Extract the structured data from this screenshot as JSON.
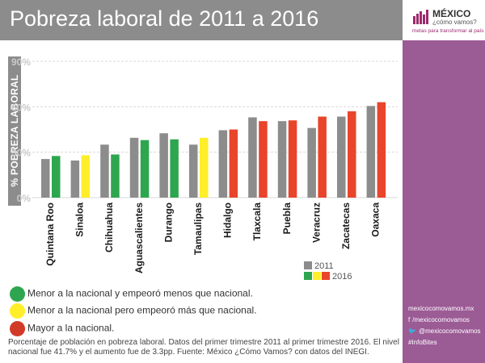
{
  "header": {
    "title": "Pobreza laboral de 2011 a 2016"
  },
  "brand": {
    "name": "MÉXICO",
    "sub": "¿cómo vamos?",
    "tagline": "metas para transformar al país",
    "logo_icon": "bar-logo-icon",
    "colors": {
      "logo": "#9b2a6e",
      "sidebar": "#9b5b95"
    }
  },
  "social": [
    {
      "icon": "",
      "text": "mexicocomovamos.mx"
    },
    {
      "icon": "facebook-icon",
      "glyph": "f",
      "text": "/mexicocomovamos"
    },
    {
      "icon": "twitter-icon",
      "glyph": "🐦",
      "text": "@mexicocomovamos"
    },
    {
      "icon": "",
      "text": "#InfoBites"
    }
  ],
  "colors": {
    "bar_2011": "#8c8c8c",
    "green": "#2ea64f",
    "yellow": "#ffee2a",
    "red": "#e8452c"
  },
  "chart_data": {
    "type": "bar",
    "title": "Pobreza laboral de 2011 a 2016",
    "ylabel": "% POBREZA LABORAL",
    "xlabel": "",
    "ylim": [
      0,
      90
    ],
    "y_ticks": [
      0,
      30,
      60,
      90
    ],
    "y_tick_labels": [
      "0%",
      "30%",
      "60%",
      "90%"
    ],
    "grid": true,
    "categories": [
      "Quintana Roo",
      "Sinaloa",
      "Chihuahua",
      "Aguascalientes",
      "Durango",
      "Tamaulipas",
      "Hidalgo",
      "Tlaxcala",
      "Puebla",
      "Veracruz",
      "Zacatecas",
      "Oaxaca"
    ],
    "series": [
      {
        "name": "2011",
        "values": [
          25.5,
          24.5,
          35,
          39.5,
          42.5,
          35,
          44.5,
          53,
          50.5,
          46,
          53.5,
          60.5
        ]
      },
      {
        "name": "2016",
        "values": [
          27.5,
          28,
          28.5,
          38,
          38.5,
          39.5,
          45,
          50.5,
          51,
          53.5,
          57,
          63
        ]
      }
    ],
    "category_group_2016": [
      "green",
      "yellow",
      "green",
      "green",
      "green",
      "yellow",
      "red",
      "red",
      "red",
      "red",
      "red",
      "red"
    ],
    "legend": {
      "position": "bottom-right",
      "label_2011": "2011",
      "label_2016": "2016"
    },
    "groups": [
      {
        "key": "green",
        "label": "Menor a la nacional y empeoró menos que nacional."
      },
      {
        "key": "yellow",
        "label": "Menor a la nacional pero empeoró más que nacional."
      },
      {
        "key": "red",
        "label": "Mayor a la nacional."
      }
    ]
  },
  "footnote": "Porcentaje de población en pobreza laboral. Datos del primer trimestre 2011 al primer trimestre 2016. El nivel nacional fue 41.7% y el aumento fue de 3.3pp. Fuente: México ¿Cómo Vamos? con datos del INEGI."
}
